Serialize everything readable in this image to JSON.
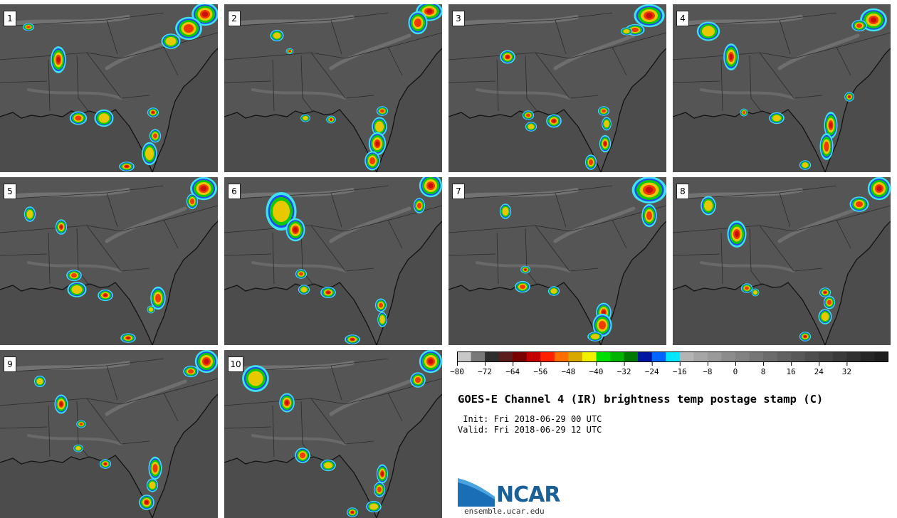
{
  "panels": [
    {
      "label": "1"
    },
    {
      "label": "2"
    },
    {
      "label": "3"
    },
    {
      "label": "4"
    },
    {
      "label": "5"
    },
    {
      "label": "6"
    },
    {
      "label": "7"
    },
    {
      "label": "8"
    },
    {
      "label": "9"
    },
    {
      "label": "10"
    }
  ],
  "colorbar": {
    "colors": [
      "#c8c8c8",
      "#787878",
      "#2e2e2e",
      "#5a1c1c",
      "#7a0000",
      "#c40000",
      "#ff2000",
      "#ff6e00",
      "#d9a800",
      "#f0f000",
      "#00e000",
      "#00b400",
      "#007a00",
      "#0014a0",
      "#0064ff",
      "#00e6ff",
      "#b4b4b4",
      "#a6a6a6",
      "#9a9a9a",
      "#8c8c8c",
      "#828282",
      "#767676",
      "#6c6c6c",
      "#626262",
      "#585858",
      "#4e4e4e",
      "#444444",
      "#3a3a3a",
      "#303030",
      "#262626",
      "#1e1e1e"
    ],
    "ticks": [
      "−80",
      "−72",
      "−64",
      "−56",
      "−48",
      "−40",
      "−32",
      "−24",
      "−16",
      "−8",
      "0",
      "8",
      "16",
      "24",
      "32"
    ]
  },
  "title": "GOES-E Channel 4 (IR) brightness temp postage stamp (C)",
  "init": " Init: Fri 2018-06-29 00 UTC",
  "valid": "Valid: Fri 2018-06-29 12 UTC",
  "logo": {
    "text": "NCAR",
    "url": "ensemble.ucar.edu"
  }
}
